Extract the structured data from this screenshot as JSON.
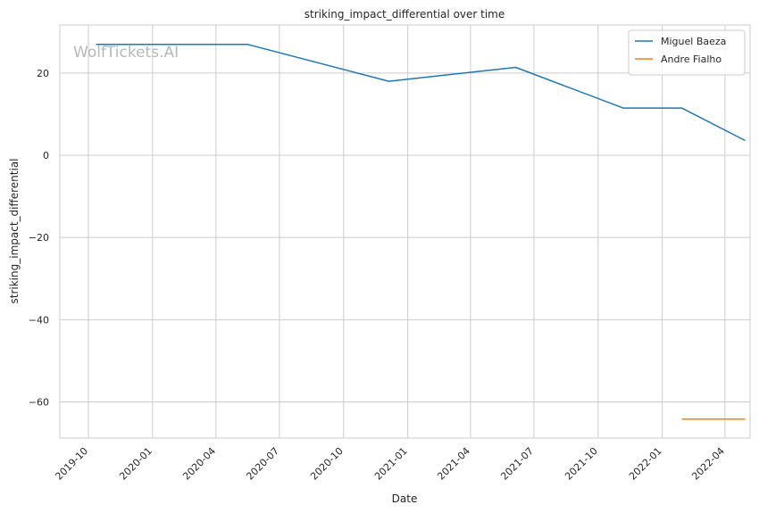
{
  "chart_data": {
    "type": "line",
    "title": "striking_impact_differential over time",
    "xlabel": "Date",
    "ylabel": "striking_impact_differential",
    "watermark": "WolfTickets.AI",
    "x_ticks": [
      "2019-10",
      "2020-01",
      "2020-04",
      "2020-07",
      "2020-10",
      "2021-01",
      "2021-04",
      "2021-07",
      "2021-10",
      "2022-01",
      "2022-04"
    ],
    "y_ticks": [
      20,
      0,
      -20,
      -40,
      -60
    ],
    "y_tick_labels": [
      "20",
      "0",
      "−20",
      "−40",
      "−60"
    ],
    "xlim": [
      "2019-08-21",
      "2022-05-07"
    ],
    "ylim": [
      -68.8,
      31.7
    ],
    "grid": true,
    "legend_position": "top-right",
    "series": [
      {
        "name": "Miguel Baeza",
        "color": "#1f77b4",
        "points": [
          {
            "x": "2019-10-12",
            "y": 27.0
          },
          {
            "x": "2020-05-16",
            "y": 27.0
          },
          {
            "x": "2020-12-05",
            "y": 18.0
          },
          {
            "x": "2021-06-05",
            "y": 21.4
          },
          {
            "x": "2021-11-06",
            "y": 11.5
          },
          {
            "x": "2022-01-29",
            "y": 11.5
          },
          {
            "x": "2022-04-30",
            "y": 3.6
          }
        ]
      },
      {
        "name": "Andre Fialho",
        "color": "#ff7f0e",
        "points": [
          {
            "x": "2022-01-29",
            "y": -64.2
          },
          {
            "x": "2022-04-30",
            "y": -64.2
          }
        ]
      }
    ]
  }
}
